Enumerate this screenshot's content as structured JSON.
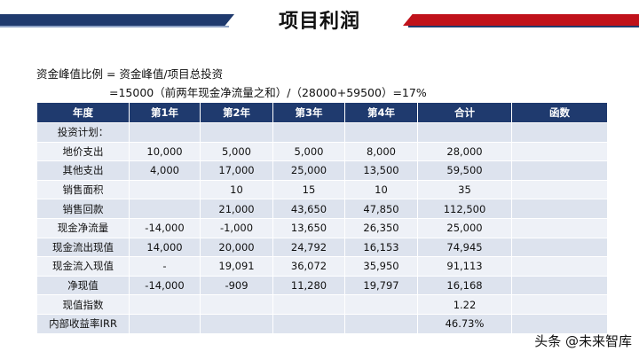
{
  "title": "项目利润",
  "formula": {
    "line1": "资金峰值比例 = 资金峰值/项目总投资",
    "line2": "=15000（前两年现金净流量之和）/（28000+59500）=17%"
  },
  "table": {
    "headers": [
      "年度",
      "第1年",
      "第2年",
      "第3年",
      "第4年",
      "合计",
      "函数"
    ],
    "rows": [
      [
        "投资计划：",
        "",
        "",
        "",
        "",
        "",
        ""
      ],
      [
        "地价支出",
        "10,000",
        "5,000",
        "5,000",
        "8,000",
        "28,000",
        ""
      ],
      [
        "其他支出",
        "4,000",
        "17,000",
        "25,000",
        "13,500",
        "59,500",
        ""
      ],
      [
        "销售面积",
        "",
        "10",
        "15",
        "10",
        "35",
        ""
      ],
      [
        "销售回款",
        "",
        "21,000",
        "43,650",
        "47,850",
        "112,500",
        ""
      ],
      [
        "现金净流量",
        "-14,000",
        "-1,000",
        "13,650",
        "26,350",
        "25,000",
        ""
      ],
      [
        "现金流出现值",
        "14,000",
        "20,000",
        "24,792",
        "16,153",
        "74,945",
        ""
      ],
      [
        "现金流入现值",
        "-",
        "19,091",
        "36,072",
        "35,950",
        "91,113",
        ""
      ],
      [
        "净现值",
        "-14,000",
        "-909",
        "11,280",
        "19,797",
        "16,168",
        ""
      ],
      [
        "现值指数",
        "",
        "",
        "",
        "",
        "1.22",
        ""
      ],
      [
        "内部收益率IRR",
        "",
        "",
        "",
        "",
        "46.73%",
        ""
      ]
    ]
  },
  "watermark": "头条 @未来智库",
  "colors": {
    "header_bg": "#1f3a6e",
    "accent_red": "#c0121b",
    "row_odd": "#dde3ee",
    "row_even": "#eef1f7"
  }
}
